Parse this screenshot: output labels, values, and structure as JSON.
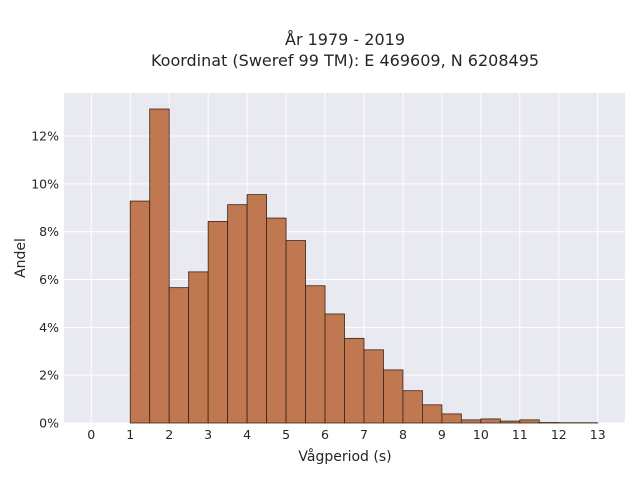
{
  "chart_data": {
    "type": "bar",
    "title_line1": "År 1979 - 2019",
    "title_line2": "Koordinat (Sweref 99 TM): E 469609, N 6208495",
    "xlabel": "Vågperiod (s)",
    "ylabel": "Andel",
    "xlim": [
      -0.7,
      13.7
    ],
    "ylim": [
      0,
      13.8
    ],
    "x_ticks": [
      0,
      1,
      2,
      3,
      4,
      5,
      6,
      7,
      8,
      9,
      10,
      11,
      12,
      13
    ],
    "x_tick_labels": [
      "0",
      "1",
      "2",
      "3",
      "4",
      "5",
      "6",
      "7",
      "8",
      "9",
      "10",
      "11",
      "12",
      "13"
    ],
    "y_ticks": [
      0,
      2,
      4,
      6,
      8,
      10,
      12
    ],
    "y_tick_labels": [
      "0%",
      "2%",
      "4%",
      "6%",
      "8%",
      "10%",
      "12%"
    ],
    "bin_width": 0.5,
    "bins": [
      {
        "start": 1.0,
        "value": 9.28
      },
      {
        "start": 1.5,
        "value": 13.13
      },
      {
        "start": 2.0,
        "value": 5.66
      },
      {
        "start": 2.5,
        "value": 6.32
      },
      {
        "start": 3.0,
        "value": 8.43
      },
      {
        "start": 3.5,
        "value": 9.13
      },
      {
        "start": 4.0,
        "value": 9.55
      },
      {
        "start": 4.5,
        "value": 8.57
      },
      {
        "start": 5.0,
        "value": 7.63
      },
      {
        "start": 5.5,
        "value": 5.74
      },
      {
        "start": 6.0,
        "value": 4.56
      },
      {
        "start": 6.5,
        "value": 3.54
      },
      {
        "start": 7.0,
        "value": 3.06
      },
      {
        "start": 7.5,
        "value": 2.22
      },
      {
        "start": 8.0,
        "value": 1.35
      },
      {
        "start": 8.5,
        "value": 0.76
      },
      {
        "start": 9.0,
        "value": 0.38
      },
      {
        "start": 9.5,
        "value": 0.13
      },
      {
        "start": 10.0,
        "value": 0.17
      },
      {
        "start": 10.5,
        "value": 0.08
      },
      {
        "start": 11.0,
        "value": 0.13
      },
      {
        "start": 11.5,
        "value": 0.02
      },
      {
        "start": 12.0,
        "value": 0.01
      },
      {
        "start": 12.5,
        "value": 0.01
      }
    ],
    "grid": true,
    "colors": {
      "bar_fill": "#c07850",
      "bar_edge": "#3a2216",
      "plot_bg": "#e8e9f1",
      "grid": "#ffffff"
    }
  }
}
